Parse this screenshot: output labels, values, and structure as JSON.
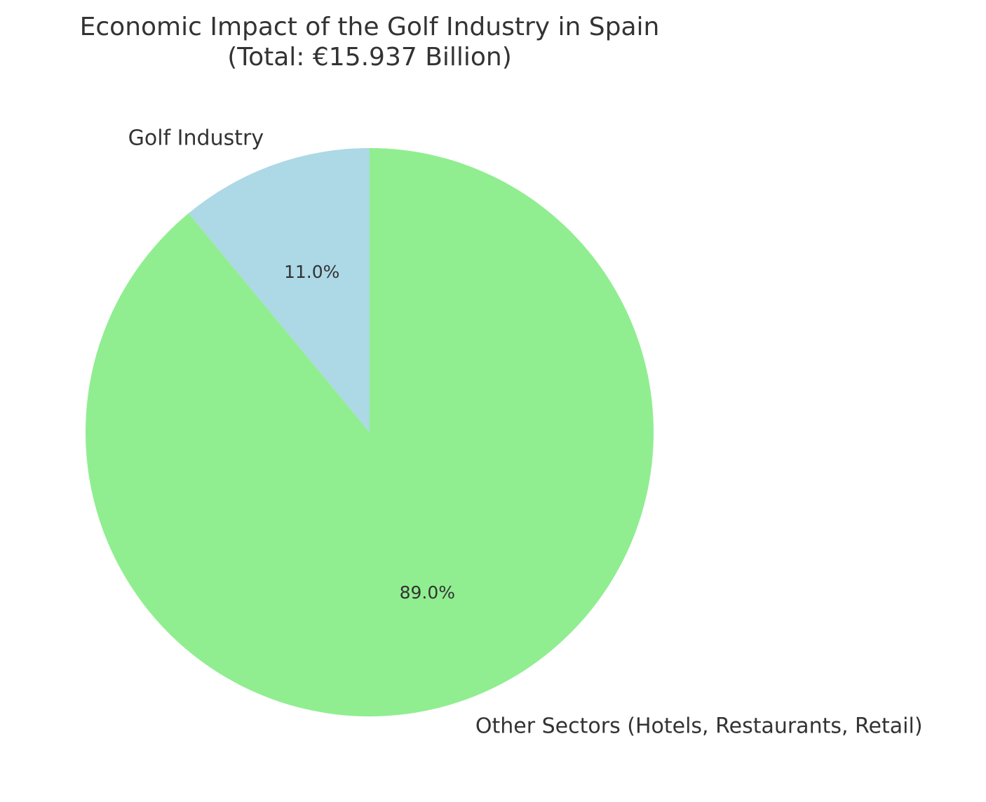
{
  "chart_data": {
    "type": "pie",
    "title": "Economic Impact of the Golf Industry in Spain",
    "subtitle": "(Total: €15.937 Billion)",
    "start_angle_deg": 90,
    "direction": "counterclockwise",
    "slices": [
      {
        "label": "Golf Industry",
        "value": 11.0,
        "pct_label": "11.0%",
        "color": "#add8e6"
      },
      {
        "label": "Other Sectors (Hotels, Restaurants, Retail)",
        "value": 89.0,
        "pct_label": "89.0%",
        "color": "#90ee90"
      }
    ]
  }
}
